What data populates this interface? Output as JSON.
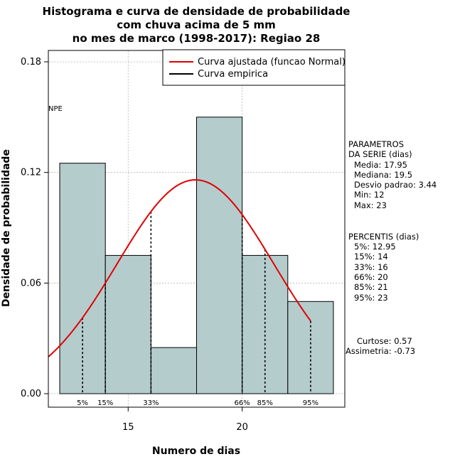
{
  "chart_data": {
    "type": "bar",
    "title_lines": [
      "Histograma e curva de densidade de probabilidade",
      "com chuva acima de 5 mm",
      "no mes de marco (1998-2017): Regiao 28"
    ],
    "xlabel": "Numero de dias",
    "ylabel": "Densidade de probabilidade",
    "xlim": [
      11.5,
      24.5
    ],
    "ylim": [
      0,
      0.18
    ],
    "xticks": [
      15,
      20
    ],
    "yticks": [
      0.0,
      0.06,
      0.12,
      0.18
    ],
    "ytick_labels": [
      "0.00",
      "0.06",
      "0.12",
      "0.18"
    ],
    "grid": true,
    "legend_position": "top-right",
    "bins": [
      {
        "x0": 12,
        "x1": 14,
        "density": 0.125
      },
      {
        "x0": 14,
        "x1": 16,
        "density": 0.075
      },
      {
        "x0": 16,
        "x1": 18,
        "density": 0.025
      },
      {
        "x0": 18,
        "x1": 20,
        "density": 0.15
      },
      {
        "x0": 20,
        "x1": 22,
        "density": 0.075
      },
      {
        "x0": 22,
        "x1": 24,
        "density": 0.05
      }
    ],
    "fitted_curve": {
      "name": "Curva ajustada (funcao Normal)",
      "color": "#e00000",
      "distribution": "normal",
      "mean": 17.95,
      "sd": 3.44,
      "x_range": [
        11.5,
        23
      ]
    },
    "empirical_curve": {
      "name": "Curva empirica",
      "color": "#000000"
    },
    "percentile_lines": [
      {
        "label": "5%",
        "x": 13
      },
      {
        "label": "15%",
        "x": 14
      },
      {
        "label": "33%",
        "x": 16
      },
      {
        "label": "66%",
        "x": 20
      },
      {
        "label": "85%",
        "x": 21
      },
      {
        "label": "95%",
        "x": 23
      }
    ],
    "corner_label": "NPE",
    "bar_fill": "#b5cccc",
    "grid_color": "#b4b4b4"
  },
  "side_panel": {
    "params_title_1": "PARAMETROS",
    "params_title_2": "DA SERIE (dias)",
    "params": [
      "Media: 17.95",
      "Mediana: 19.5",
      "Desvio padrao: 3.44",
      "Min: 12",
      "Max: 23"
    ],
    "pct_title": "PERCENTIS (dias)",
    "pcts": [
      "5%: 12.95",
      "15%: 14",
      "33%: 16",
      "66%: 20",
      "85%: 21",
      "95%: 23"
    ],
    "curtose": "Curtose: 0.57",
    "assimetria": "Assimetria: -0.73"
  }
}
